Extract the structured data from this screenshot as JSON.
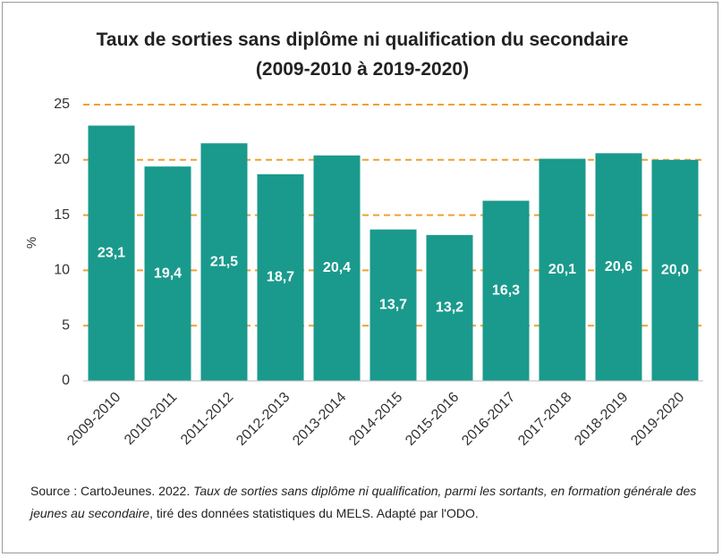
{
  "chart_data": {
    "type": "bar",
    "title": "Taux de sorties sans diplôme ni qualification du secondaire (2009-2010 à 2019-2020)",
    "y_label": "%",
    "categories": [
      "2009-2010",
      "2010-2011",
      "2011-2012",
      "2012-2013",
      "2013-2014",
      "2014-2015",
      "2015-2016",
      "2016-2017",
      "2017-2018",
      "2018-2019",
      "2019-2020"
    ],
    "values": [
      23.1,
      19.4,
      21.5,
      18.7,
      20.4,
      13.7,
      13.2,
      16.3,
      20.1,
      20.6,
      20.0
    ],
    "value_labels": [
      "23,1",
      "19,4",
      "21,5",
      "18,7",
      "20,4",
      "13,7",
      "13,2",
      "16,3",
      "20,1",
      "20,6",
      "20,0"
    ],
    "color": "#1a9a8c",
    "ylim": [
      0,
      25
    ],
    "yticks": [
      0,
      5,
      10,
      15,
      20,
      25
    ],
    "grid": true,
    "grid_color": "#f0a030",
    "source": [
      "Source : CartoJeunes. 2022. ",
      "Taux de sorties sans diplôme ni qualification, parmi les sortants, en formation générale des jeunes au secondaire",
      ", tiré des données statistiques du MELS. Adapté par l'ODO."
    ]
  }
}
